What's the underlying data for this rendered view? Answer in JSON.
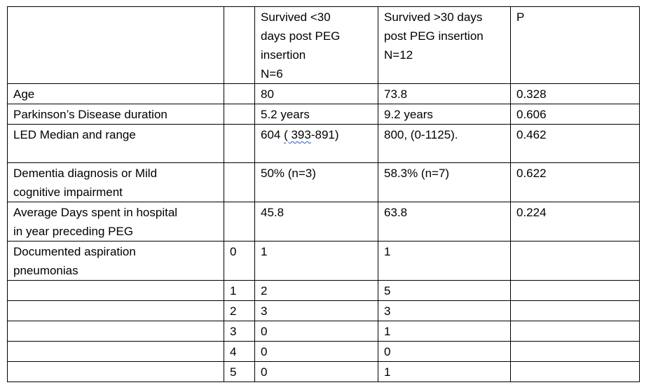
{
  "table": {
    "header": {
      "label": "",
      "num": "",
      "col1": "Survived <30\ndays post PEG\ninsertion\nN=6",
      "col2": "Survived >30 days\npost PEG insertion\nN=12",
      "p": "P"
    },
    "rows": [
      {
        "label": "Age",
        "num": "",
        "col1": "80",
        "col2": "73.8",
        "p": "0.328"
      },
      {
        "label": "Parkinson’s Disease duration",
        "num": "",
        "col1": "5.2 years",
        "col2": "9.2 years",
        "p": "0.606"
      },
      {
        "label": "LED Median and range",
        "num": "",
        "col1_a": "604 ",
        "col1_b": "( 393",
        "col1_c": "-891)",
        "col2": "800, (0-1125).",
        "p": "0.462"
      },
      {
        "label": "Dementia diagnosis or Mild\ncognitive impairment",
        "num": "",
        "col1": "50% (n=3)",
        "col2": "58.3% (n=7)",
        "p": "0.622"
      },
      {
        "label": "Average Days spent in hospital\nin year preceding PEG",
        "num": "",
        "col1": "45.8",
        "col2": "63.8",
        "p": "0.224"
      },
      {
        "label": "Documented aspiration\npneumonias",
        "num": "0",
        "col1": "1",
        "col2": "1",
        "p": ""
      },
      {
        "label": "",
        "num": "1",
        "col1": "2",
        "col2": "5",
        "p": ""
      },
      {
        "label": "",
        "num": "2",
        "col1": "3",
        "col2": "3",
        "p": ""
      },
      {
        "label": "",
        "num": "3",
        "col1": "0",
        "col2": "1",
        "p": ""
      },
      {
        "label": "",
        "num": "4",
        "col1": "0",
        "col2": "0",
        "p": ""
      },
      {
        "label": "",
        "num": "5",
        "col1": "0",
        "col2": "1",
        "p": ""
      }
    ]
  }
}
